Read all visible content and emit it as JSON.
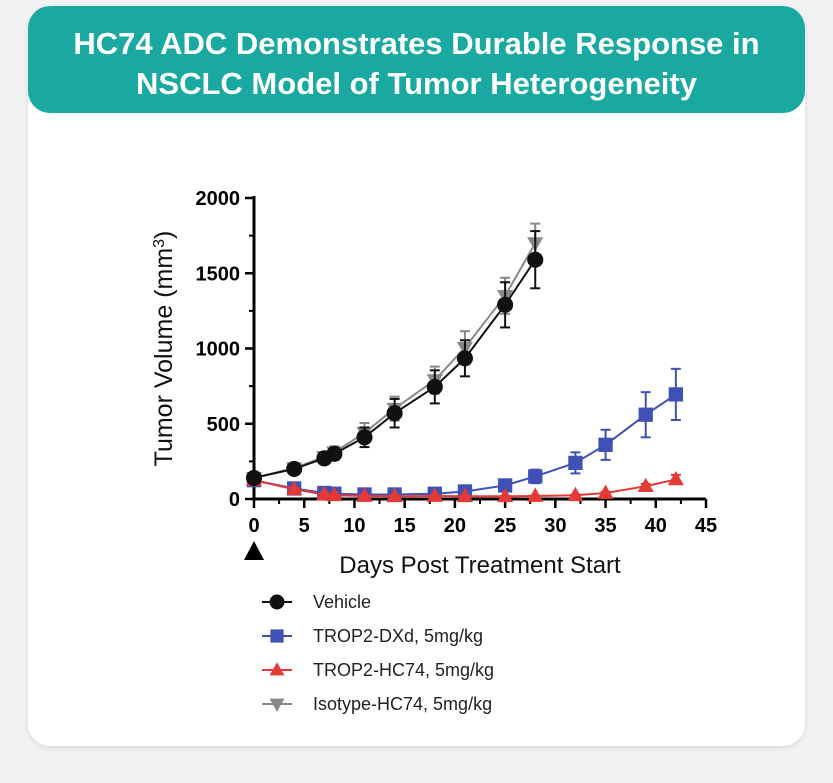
{
  "header": {
    "title_line1": "HC74 ADC Demonstrates Durable Response in",
    "title_line2": "NSCLC Model of Tumor Heterogeneity",
    "background": "#1aa9a0"
  },
  "chart_data": {
    "type": "line",
    "xlabel": "Days Post Treatment Start",
    "ylabel_main": "Tumor Volume (mm",
    "ylabel_sup": "3",
    "ylabel_tail": ")",
    "xlim": [
      0,
      45
    ],
    "ylim": [
      0,
      2000
    ],
    "xticks": [
      "0",
      "5",
      "10",
      "15",
      "20",
      "25",
      "30",
      "35",
      "40",
      "45"
    ],
    "yticks": [
      "0",
      "500",
      "1000",
      "1500",
      "2000"
    ],
    "grid": false,
    "legend_position": "bottom",
    "treatment_marker": "triangle at day 0",
    "series": [
      {
        "name": "Vehicle",
        "color": "#111111",
        "marker": "circle",
        "x": [
          0,
          4,
          7,
          8,
          11,
          14,
          18,
          21,
          25,
          28
        ],
        "y": [
          140,
          200,
          270,
          300,
          410,
          570,
          745,
          935,
          1290,
          1590
        ],
        "err": [
          15,
          20,
          30,
          40,
          65,
          95,
          110,
          120,
          150,
          190
        ]
      },
      {
        "name": "TROP2-DXd, 5mg/kg",
        "color": "#3f51b5",
        "marker": "square",
        "x": [
          0,
          4,
          7,
          8,
          11,
          14,
          18,
          21,
          25,
          28,
          32,
          35,
          39,
          42
        ],
        "y": [
          125,
          70,
          40,
          35,
          30,
          30,
          35,
          50,
          90,
          150,
          240,
          360,
          560,
          695
        ],
        "err": [
          10,
          8,
          6,
          5,
          5,
          5,
          6,
          10,
          15,
          45,
          70,
          100,
          150,
          170
        ]
      },
      {
        "name": "TROP2-HC74, 5mg/kg",
        "color": "#e53935",
        "marker": "triangle-up",
        "x": [
          0,
          4,
          7,
          8,
          11,
          14,
          18,
          21,
          25,
          28,
          32,
          35,
          39,
          42
        ],
        "y": [
          125,
          65,
          30,
          25,
          20,
          18,
          20,
          18,
          18,
          20,
          25,
          40,
          85,
          130
        ],
        "err": [
          10,
          8,
          5,
          4,
          4,
          3,
          3,
          3,
          3,
          3,
          5,
          8,
          15,
          30
        ]
      },
      {
        "name": "Isotype-HC74, 5mg/kg",
        "color": "#888888",
        "marker": "triangle-down",
        "x": [
          0,
          4,
          7,
          8,
          11,
          14,
          18,
          21,
          25,
          28
        ],
        "y": [
          140,
          205,
          280,
          310,
          440,
          600,
          790,
          1005,
          1350,
          1700
        ],
        "err": [
          15,
          20,
          30,
          40,
          65,
          80,
          90,
          110,
          120,
          130
        ]
      }
    ]
  }
}
